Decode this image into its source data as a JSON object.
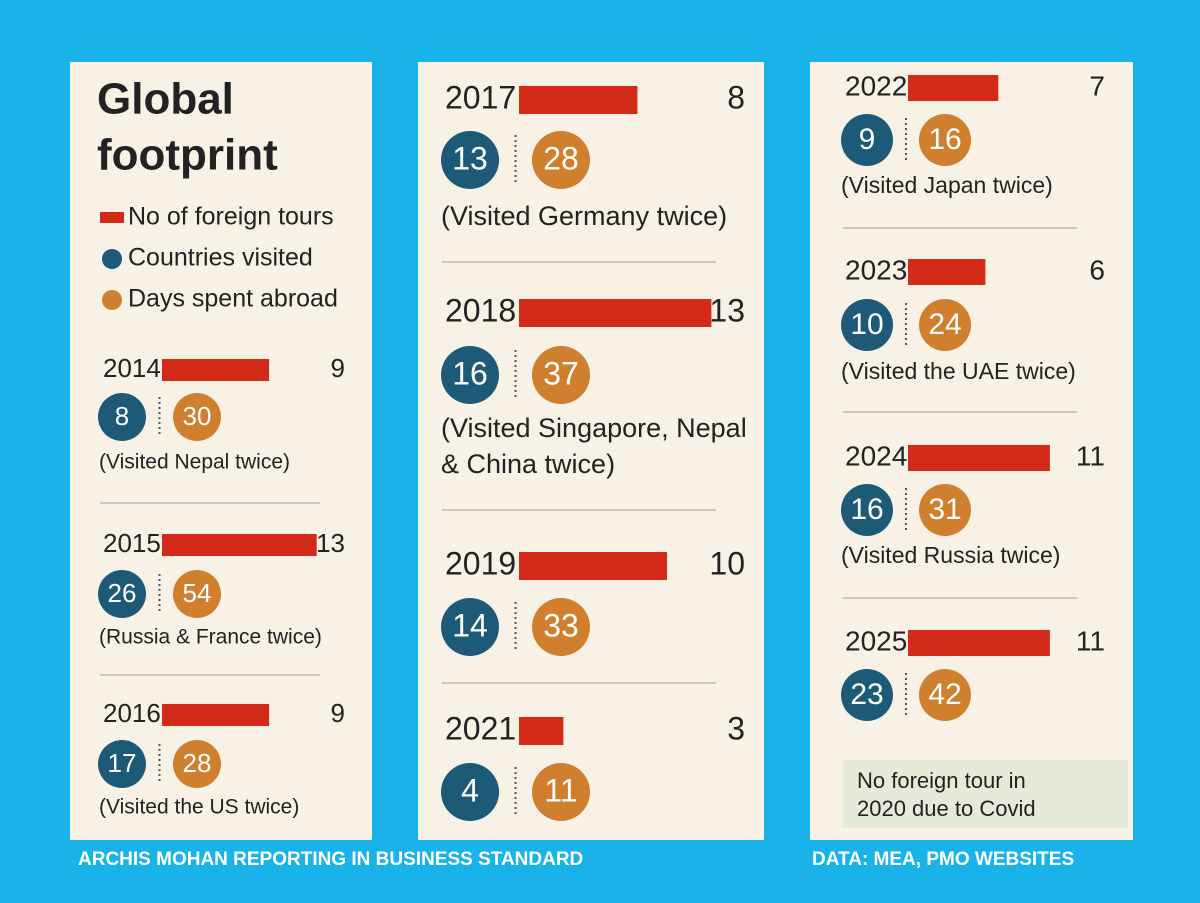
{
  "title": [
    "Global",
    "footprint"
  ],
  "legend": {
    "tours": "No of foreign tours",
    "countries": "Countries visited",
    "days": "Days spent abroad"
  },
  "colors": {
    "tours": "#d42a1a",
    "countries": "#1c5a78",
    "days": "#cf7f2e"
  },
  "years": [
    {
      "year": "2014",
      "tours": 9,
      "countries": 8,
      "days": 30,
      "note": [
        "(Visited Nepal twice)"
      ]
    },
    {
      "year": "2015",
      "tours": 13,
      "countries": 26,
      "days": 54,
      "note": [
        "(Russia & France twice)"
      ]
    },
    {
      "year": "2016",
      "tours": 9,
      "countries": 17,
      "days": 28,
      "note": [
        "(Visited the US twice)"
      ]
    },
    {
      "year": "2017",
      "tours": 8,
      "countries": 13,
      "days": 28,
      "note": [
        "(Visited Germany twice)"
      ]
    },
    {
      "year": "2018",
      "tours": 13,
      "countries": 16,
      "days": 37,
      "note": [
        "(Visited Singapore, Nepal",
        "& China twice)"
      ]
    },
    {
      "year": "2019",
      "tours": 10,
      "countries": 14,
      "days": 33
    },
    {
      "year": "2021",
      "tours": 3,
      "countries": 4,
      "days": 11
    },
    {
      "year": "2022",
      "tours": 7,
      "countries": 9,
      "days": 16,
      "note": [
        "(Visited Japan twice)"
      ]
    },
    {
      "year": "2023",
      "tours": 6,
      "countries": 10,
      "days": 24,
      "note": [
        "(Visited the UAE twice)"
      ]
    },
    {
      "year": "2024",
      "tours": 11,
      "countries": 16,
      "days": 31,
      "note": [
        "(Visited Russia twice)"
      ]
    },
    {
      "year": "2025",
      "tours": 11,
      "countries": 23,
      "days": 42
    }
  ],
  "covid_note": [
    "No foreign tour in",
    "2020 due to Covid"
  ],
  "credit": "ARCHIS MOHAN REPORTING IN BUSINESS STANDARD",
  "source": "DATA: MEA, PMO WEBSITES"
}
